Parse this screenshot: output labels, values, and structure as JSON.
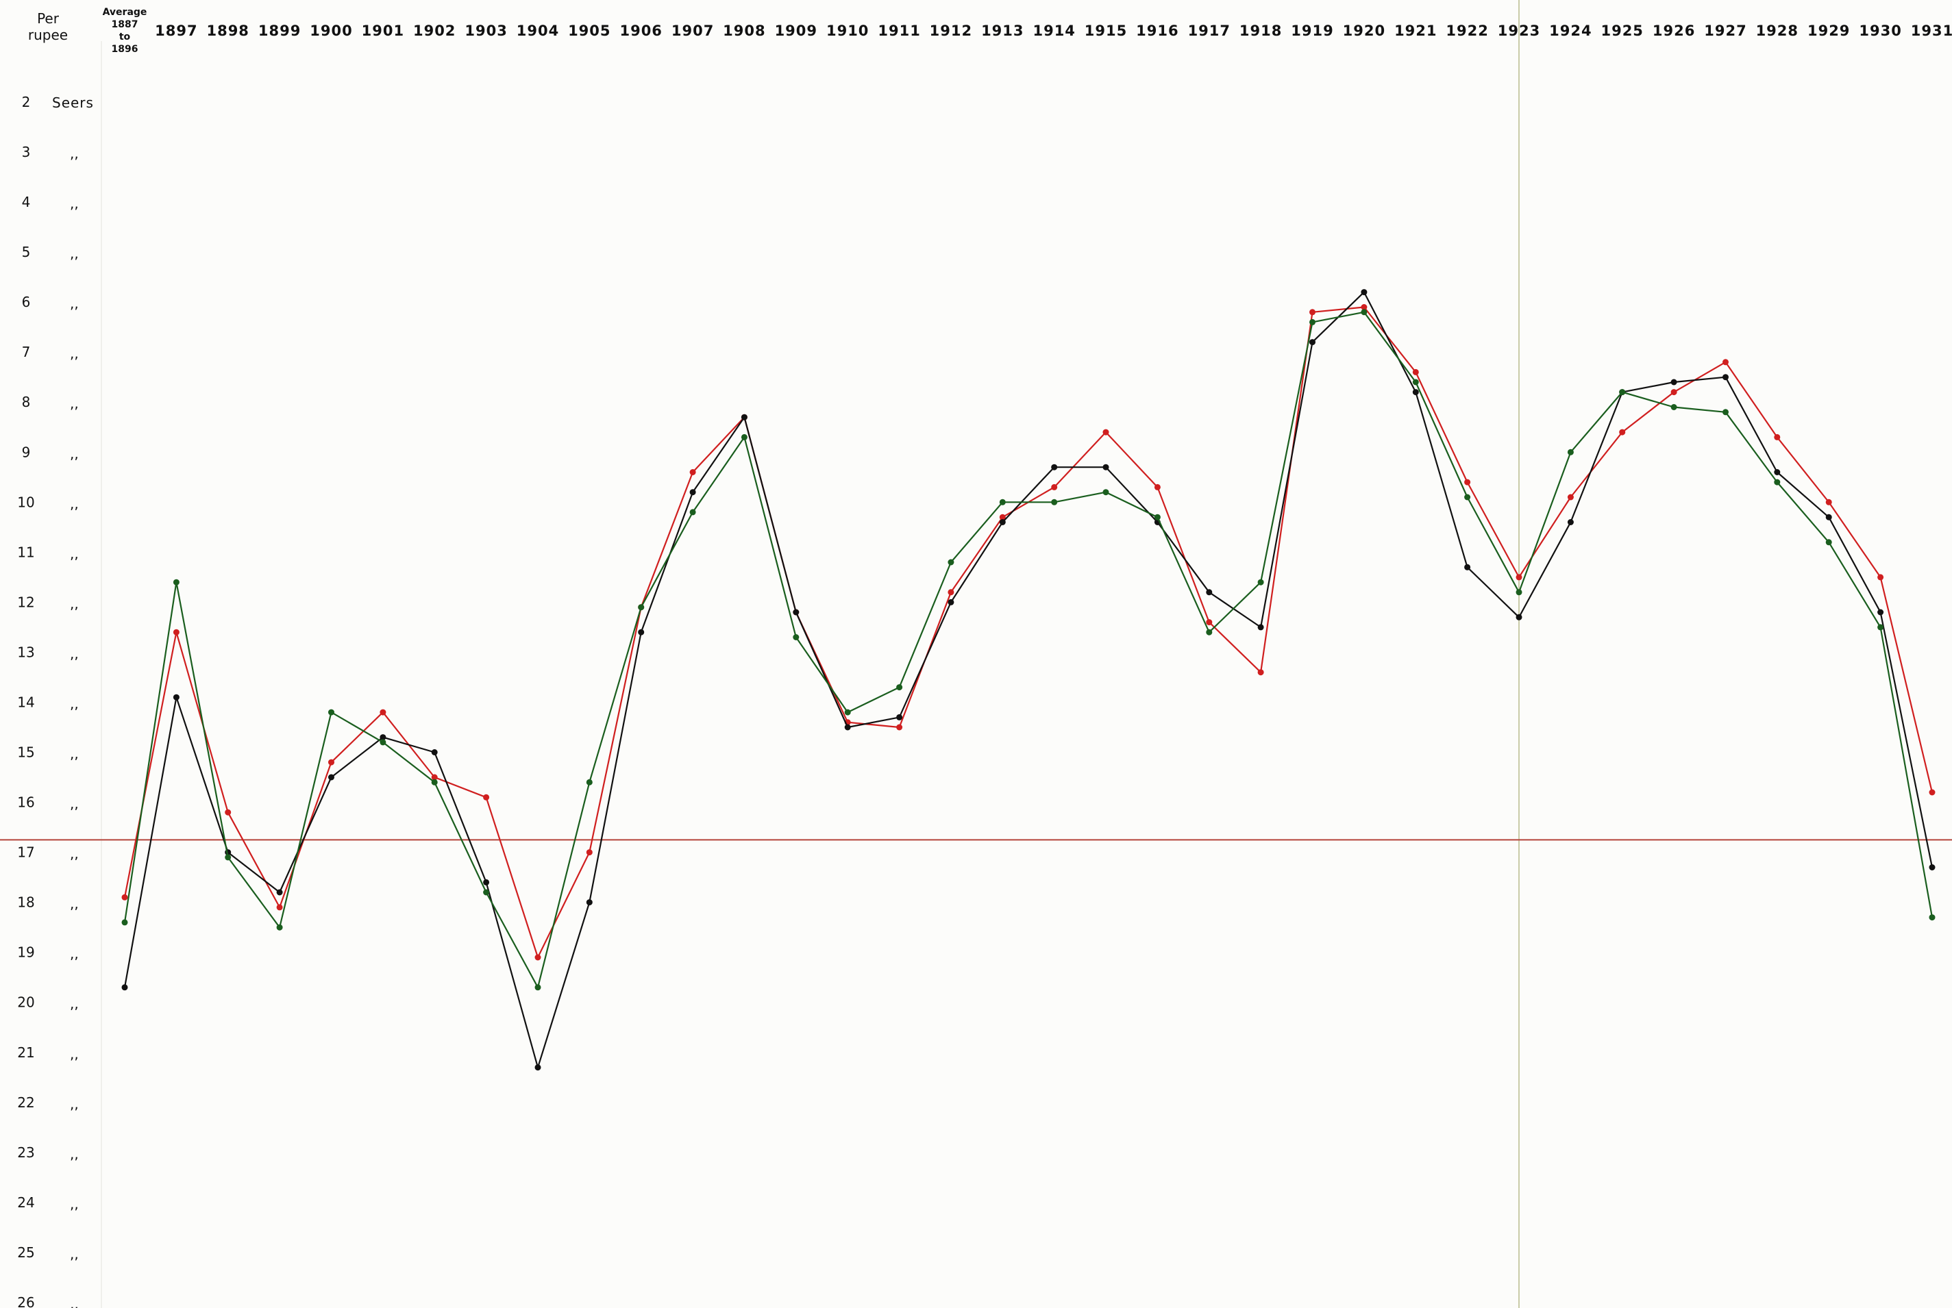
{
  "chart_data": {
    "type": "line",
    "title": "",
    "corner_label": [
      "Per",
      "rupee"
    ],
    "y_unit": "Seers",
    "ditto": ",,",
    "first_column_label": [
      "Average",
      "1887",
      "to",
      "1896"
    ],
    "categories": [
      "Average 1887 to 1896",
      "1897",
      "1898",
      "1899",
      "1900",
      "1901",
      "1902",
      "1903",
      "1904",
      "1905",
      "1906",
      "1907",
      "1908",
      "1909",
      "1910",
      "1911",
      "1912",
      "1913",
      "1914",
      "1915",
      "1916",
      "1917",
      "1918",
      "1919",
      "1920",
      "1921",
      "1922",
      "1923",
      "1924",
      "1925",
      "1926",
      "1927",
      "1928",
      "1929",
      "1930",
      "1931"
    ],
    "y_ticks": [
      2,
      3,
      4,
      5,
      6,
      7,
      8,
      9,
      10,
      11,
      12,
      13,
      14,
      15,
      16,
      17,
      18,
      19,
      20,
      21,
      22,
      23,
      24,
      25,
      26
    ],
    "y_range": [
      2,
      26
    ],
    "y_inverted": true,
    "reference_line": 16.75,
    "reference_line_color": "#b5443a",
    "vertical_marker": "1923",
    "vertical_marker_color": "#c9cba8",
    "series": [
      {
        "color": "#d01f1f",
        "values": [
          17.9,
          12.6,
          16.2,
          18.1,
          15.2,
          14.2,
          15.5,
          15.9,
          19.1,
          17.0,
          12.1,
          9.4,
          8.3,
          12.2,
          14.4,
          14.5,
          11.8,
          10.3,
          9.7,
          8.6,
          9.7,
          12.4,
          13.4,
          6.2,
          6.1,
          7.4,
          9.6,
          11.5,
          9.9,
          8.6,
          7.8,
          7.2,
          8.7,
          10.0,
          11.5,
          15.8
        ]
      },
      {
        "color": "#111111",
        "values": [
          19.7,
          13.9,
          17.0,
          17.8,
          15.5,
          14.7,
          15.0,
          17.6,
          21.3,
          18.0,
          12.6,
          9.8,
          8.3,
          12.2,
          14.5,
          14.3,
          12.0,
          10.4,
          9.3,
          9.3,
          10.4,
          11.8,
          12.5,
          6.8,
          5.8,
          7.8,
          11.3,
          12.3,
          10.4,
          7.8,
          7.6,
          7.5,
          9.4,
          10.3,
          12.2,
          17.3
        ]
      },
      {
        "color": "#1a5e1e",
        "values": [
          18.4,
          11.6,
          17.1,
          18.5,
          14.2,
          14.8,
          15.6,
          17.8,
          19.7,
          15.6,
          12.1,
          10.2,
          8.7,
          12.7,
          14.2,
          13.7,
          11.2,
          10.0,
          10.0,
          9.8,
          10.3,
          12.6,
          11.6,
          6.4,
          6.2,
          7.6,
          9.9,
          11.8,
          9.0,
          7.8,
          8.1,
          8.2,
          9.6,
          10.8,
          12.5,
          18.3
        ]
      }
    ]
  }
}
